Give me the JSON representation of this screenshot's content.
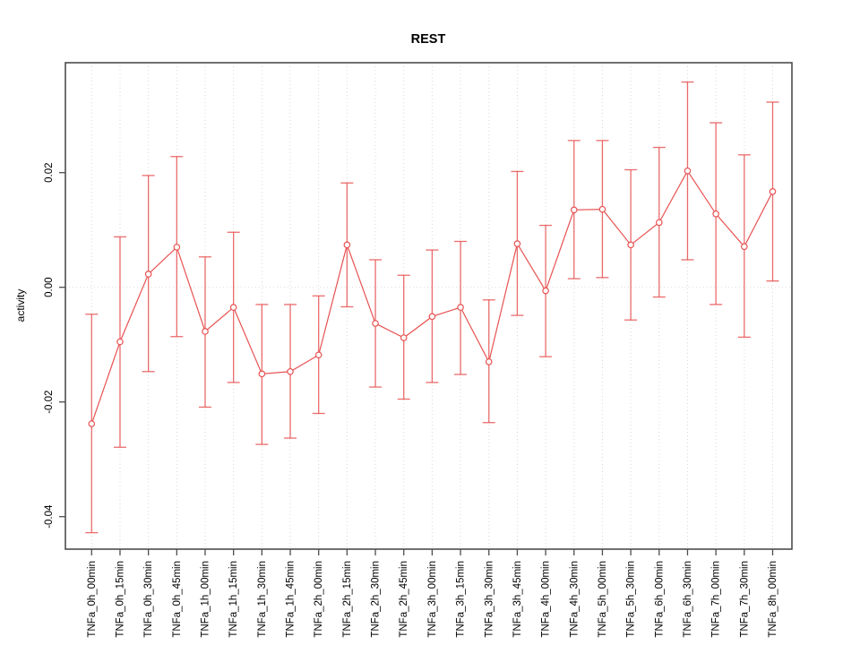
{
  "chart_data": {
    "type": "line",
    "title": "REST",
    "xlabel": "",
    "ylabel": "activity",
    "legend": "none",
    "grid": "vertical dotted gridlines at each category plus dotted horizontal line at y=0",
    "point_style": "open-circle with error bars",
    "xtick_rotation": "vertical",
    "ylim": [
      -0.0457,
      0.0392
    ],
    "yticks": [
      {
        "label": "0.02",
        "value": 0.02
      },
      {
        "label": "0.00",
        "value": 0.0
      },
      {
        "label": "-0.02",
        "value": -0.02
      },
      {
        "label": "-0.04",
        "value": -0.04
      }
    ],
    "categories": [
      "TNFa_0h_00min",
      "TNFa_0h_15min",
      "TNFa_0h_30min",
      "TNFa_0h_45min",
      "TNFa_1h_00min",
      "TNFa_1h_15min",
      "TNFa_1h_30min",
      "TNFa_1h_45min",
      "TNFa_2h_00min",
      "TNFa_2h_15min",
      "TNFa_2h_30min",
      "TNFa_2h_45min",
      "TNFa_3h_00min",
      "TNFa_3h_15min",
      "TNFa_3h_30min",
      "TNFa_3h_45min",
      "TNFa_4h_00min",
      "TNFa_4h_30min",
      "TNFa_5h_00min",
      "TNFa_5h_30min",
      "TNFa_6h_00min",
      "TNFa_6h_30min",
      "TNFa_7h_00min",
      "TNFa_7h_30min",
      "TNFa_8h_00min"
    ],
    "series": [
      {
        "name": "activity",
        "values": [
          -0.0238,
          -0.0095,
          0.0023,
          0.007,
          -0.0077,
          -0.0035,
          -0.0151,
          -0.0147,
          -0.0118,
          0.0074,
          -0.0063,
          -0.0088,
          -0.0051,
          -0.0035,
          -0.013,
          0.0076,
          -0.0006,
          0.0135,
          0.0136,
          0.0074,
          0.0113,
          0.0203,
          0.0128,
          0.0071,
          0.0167
        ],
        "error_high": [
          -0.0047,
          0.0088,
          0.0195,
          0.0228,
          0.0053,
          0.0096,
          -0.003,
          -0.003,
          -0.0015,
          0.0182,
          0.0048,
          0.0021,
          0.0065,
          0.008,
          -0.0022,
          0.0202,
          0.0108,
          0.0256,
          0.0256,
          0.0205,
          0.0244,
          0.0358,
          0.0287,
          0.0231,
          0.0323
        ],
        "error_low": [
          -0.0428,
          -0.0279,
          -0.0147,
          -0.0086,
          -0.0209,
          -0.0166,
          -0.0274,
          -0.0263,
          -0.022,
          -0.0034,
          -0.0174,
          -0.0195,
          -0.0166,
          -0.0152,
          -0.0236,
          -0.0049,
          -0.0121,
          0.0015,
          0.0017,
          -0.0057,
          -0.0017,
          0.0048,
          -0.003,
          -0.0087,
          0.0011
        ]
      }
    ],
    "colors": {
      "series": "#e85252",
      "grid": "#d9d9d9",
      "frame": "#4d4d4d",
      "text": "#000000",
      "background": "#ffffff"
    }
  }
}
